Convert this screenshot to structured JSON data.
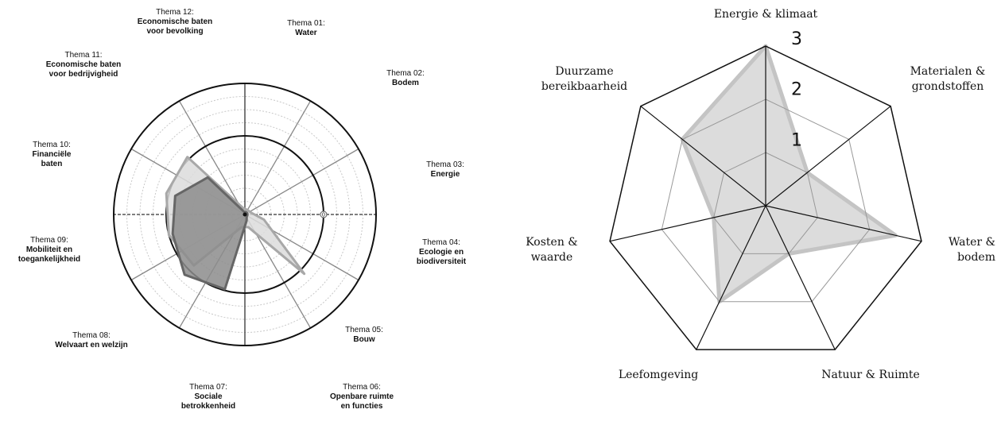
{
  "chart_data": [
    {
      "type": "radar",
      "shape": "circle",
      "categories": [
        {
          "number": "Thema 01:",
          "lines": [
            "Water"
          ]
        },
        {
          "number": "Thema 02:",
          "lines": [
            "Bodem"
          ]
        },
        {
          "number": "Thema 03:",
          "lines": [
            "Energie"
          ]
        },
        {
          "number": "Thema 04:",
          "lines": [
            "Ecologie en",
            "biodiversiteit"
          ]
        },
        {
          "number": "Thema 05:",
          "lines": [
            "Bouw"
          ]
        },
        {
          "number": "Thema 06:",
          "lines": [
            "Openbare ruimte",
            "en functies"
          ]
        },
        {
          "number": "Thema 07:",
          "lines": [
            "Sociale",
            "betrokkenheid"
          ]
        },
        {
          "number": "Thema 08:",
          "lines": [
            "Welvaart en welzijn"
          ]
        },
        {
          "number": "Thema 09:",
          "lines": [
            "Mobiliteit en",
            "toegankelijkheid"
          ]
        },
        {
          "number": "Thema 10:",
          "lines": [
            "Financiële",
            "baten"
          ]
        },
        {
          "number": "Thema 11:",
          "lines": [
            "Economische baten",
            "voor bedrijvigheid"
          ]
        },
        {
          "number": "Thema 12:",
          "lines": [
            "Economische baten",
            "voor bevolking"
          ]
        }
      ],
      "rlim": [
        -6,
        4
      ],
      "rticks": [
        -5,
        -4,
        -3,
        -2,
        -1,
        0,
        1,
        2,
        3
      ],
      "highlight_ring": 0,
      "series": [
        {
          "color": "#a8a8a8",
          "fill": "#dcdcdc",
          "values": [
            -5.6,
            -5.6,
            -5.5,
            -4.5,
            0.4,
            -5,
            -5,
            -0.5,
            0,
            0.2,
            0.2,
            -5.5
          ]
        },
        {
          "color": "#666666",
          "fill": "#8c8c8c",
          "values": [
            -5.8,
            -5.8,
            -5.8,
            -5.8,
            -5.8,
            -5.5,
            -0.1,
            0.5,
            -0.3,
            -0.5,
            -2,
            -5.8
          ]
        }
      ],
      "annotations": [
        {
          "text": "0",
          "value": 0
        }
      ]
    },
    {
      "type": "radar",
      "shape": "polygon",
      "categories": [
        {
          "lines": [
            "Energie & klimaat"
          ]
        },
        {
          "lines": [
            "Materialen &",
            "grondstoffen"
          ]
        },
        {
          "lines": [
            "Water &",
            "bodem"
          ]
        },
        {
          "lines": [
            "Natuur & Ruimte"
          ]
        },
        {
          "lines": [
            "Leefomgeving"
          ]
        },
        {
          "lines": [
            "Kosten &",
            "waarde"
          ]
        },
        {
          "lines": [
            "Duurzame",
            "bereikbaarheid"
          ]
        }
      ],
      "rlim": [
        0,
        3
      ],
      "rticks": [
        1,
        2,
        3
      ],
      "series": [
        {
          "color": "#c4c4c4",
          "fill": "#dcdcdc",
          "values": [
            3,
            1,
            2.5,
            1,
            2,
            1,
            2
          ]
        }
      ]
    }
  ]
}
